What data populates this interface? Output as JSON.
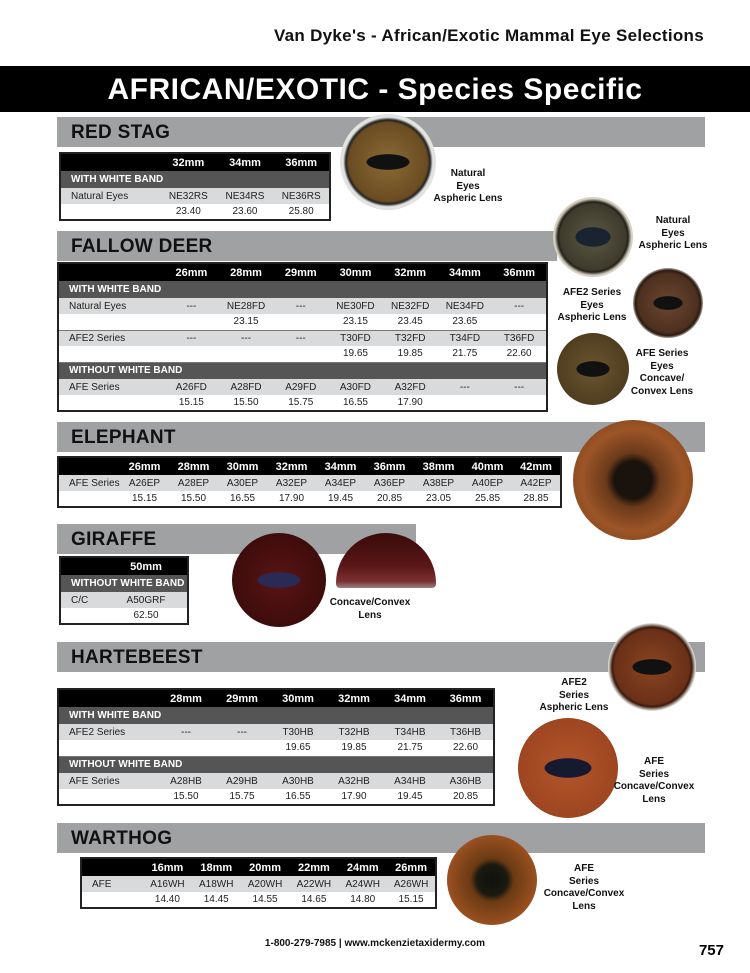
{
  "header": {
    "title": "Van Dyke's - African/Exotic Mammal Eye Selections",
    "banner": "AFRICAN/EXOTIC - Species Specific"
  },
  "sections": {
    "red_stag": {
      "title": "RED STAG",
      "sizes": [
        "32mm",
        "34mm",
        "36mm"
      ],
      "blocks": [
        {
          "group": "WITH WHITE BAND",
          "rows": [
            {
              "label": "Natural Eyes",
              "codes": [
                "NE32RS",
                "NE34RS",
                "NE36RS"
              ],
              "prices": [
                "23.40",
                "23.60",
                "25.80"
              ]
            }
          ]
        }
      ]
    },
    "fallow_deer": {
      "title": "FALLOW DEER",
      "sizes": [
        "26mm",
        "28mm",
        "29mm",
        "30mm",
        "32mm",
        "34mm",
        "36mm"
      ],
      "blocks": [
        {
          "group": "WITH WHITE BAND",
          "rows": [
            {
              "label": "Natural Eyes",
              "codes": [
                "---",
                "NE28FD",
                "---",
                "NE30FD",
                "NE32FD",
                "NE34FD",
                "---"
              ],
              "prices": [
                "",
                "23.15",
                "",
                "23.15",
                "23.45",
                "23.65",
                ""
              ]
            },
            {
              "label": "AFE2 Series",
              "codes": [
                "---",
                "---",
                "---",
                "T30FD",
                "T32FD",
                "T34FD",
                "T36FD"
              ],
              "prices": [
                "",
                "",
                "",
                "19.65",
                "19.85",
                "21.75",
                "22.60"
              ]
            }
          ]
        },
        {
          "group": "WITHOUT WHITE BAND",
          "rows": [
            {
              "label": "AFE Series",
              "codes": [
                "A26FD",
                "A28FD",
                "A29FD",
                "A30FD",
                "A32FD",
                "---",
                "---"
              ],
              "prices": [
                "15.15",
                "15.50",
                "15.75",
                "16.55",
                "17.90",
                "",
                ""
              ]
            }
          ]
        }
      ]
    },
    "elephant": {
      "title": "ELEPHANT",
      "sizes": [
        "26mm",
        "28mm",
        "30mm",
        "32mm",
        "34mm",
        "36mm",
        "38mm",
        "40mm",
        "42mm"
      ],
      "blocks": [
        {
          "group": null,
          "rows": [
            {
              "label": "AFE Series",
              "codes": [
                "A26EP",
                "A28EP",
                "A30EP",
                "A32EP",
                "A34EP",
                "A36EP",
                "A38EP",
                "A40EP",
                "A42EP"
              ],
              "prices": [
                "15.15",
                "15.50",
                "16.55",
                "17.90",
                "19.45",
                "20.85",
                "23.05",
                "25.85",
                "28.85"
              ]
            }
          ]
        }
      ]
    },
    "giraffe": {
      "title": "GIRAFFE",
      "sizes": [
        "50mm"
      ],
      "blocks": [
        {
          "group": "WITHOUT WHITE BAND",
          "rows": [
            {
              "label": "C/C",
              "codes": [
                "A50GRF"
              ],
              "prices": [
                "62.50"
              ]
            }
          ]
        }
      ]
    },
    "hartebeest": {
      "title": "HARTEBEEST",
      "sizes": [
        "28mm",
        "29mm",
        "30mm",
        "32mm",
        "34mm",
        "36mm"
      ],
      "blocks": [
        {
          "group": "WITH WHITE BAND",
          "rows": [
            {
              "label": "AFE2 Series",
              "codes": [
                "---",
                "---",
                "T30HB",
                "T32HB",
                "T34HB",
                "T36HB"
              ],
              "prices": [
                "",
                "",
                "19.65",
                "19.85",
                "21.75",
                "22.60"
              ]
            }
          ]
        },
        {
          "group": "WITHOUT WHITE BAND",
          "rows": [
            {
              "label": "AFE Series",
              "codes": [
                "A28HB",
                "A29HB",
                "A30HB",
                "A32HB",
                "A34HB",
                "A36HB"
              ],
              "prices": [
                "15.50",
                "15.75",
                "16.55",
                "17.90",
                "19.45",
                "20.85"
              ]
            }
          ]
        }
      ]
    },
    "warthog": {
      "title": "WARTHOG",
      "sizes": [
        "16mm",
        "18mm",
        "20mm",
        "22mm",
        "24mm",
        "26mm"
      ],
      "blocks": [
        {
          "group": null,
          "rows": [
            {
              "label": "AFE",
              "codes": [
                "A16WH",
                "A18WH",
                "A20WH",
                "A22WH",
                "A24WH",
                "A26WH"
              ],
              "prices": [
                "14.40",
                "14.45",
                "14.55",
                "14.65",
                "14.80",
                "15.15"
              ]
            }
          ]
        }
      ]
    }
  },
  "captions": {
    "red_stag": "Natural\nEyes\nAspheric Lens",
    "fallow_natural": "Natural\nEyes\nAspheric Lens",
    "fallow_afe2": "AFE2 Series\nEyes\nAspheric Lens",
    "fallow_afe": "AFE Series\nEyes\nConcave/\nConvex Lens",
    "giraffe": "Concave/Convex\nLens",
    "hartebeest_afe2": "AFE2\nSeries\nAspheric Lens",
    "hartebeest_afe": "AFE\nSeries\nConcave/Convex\nLens",
    "warthog": "AFE\nSeries\nConcave/Convex\nLens"
  },
  "footer": {
    "contact": "1-800-279-7985 | www.mckenzietaxidermy.com",
    "page_number": "757"
  }
}
